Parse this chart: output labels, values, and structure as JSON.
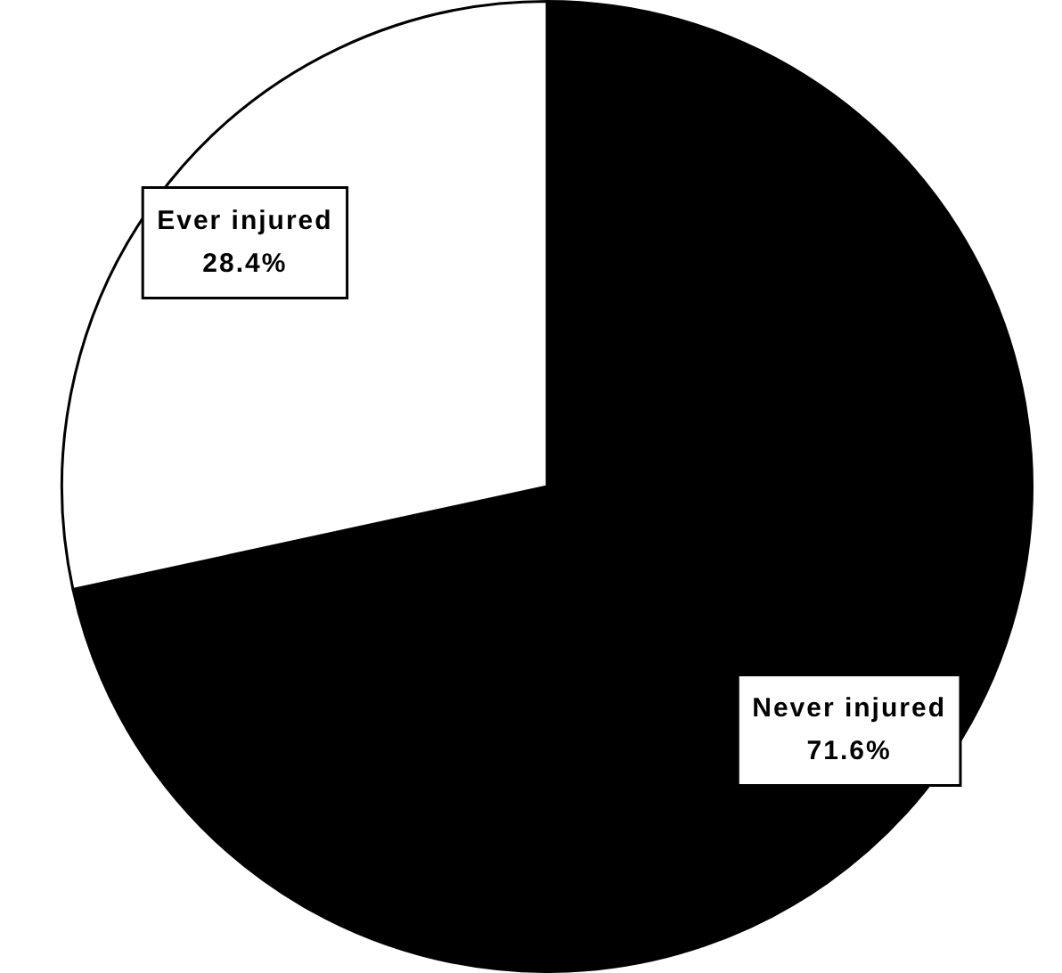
{
  "chart_data": {
    "type": "pie",
    "categories": [
      "Never injured",
      "Ever injured"
    ],
    "values": [
      71.6,
      28.4
    ],
    "colors": [
      "#000000",
      "#ffffff"
    ],
    "value_labels": [
      "71.6%",
      "28.4%"
    ],
    "legend": false
  }
}
